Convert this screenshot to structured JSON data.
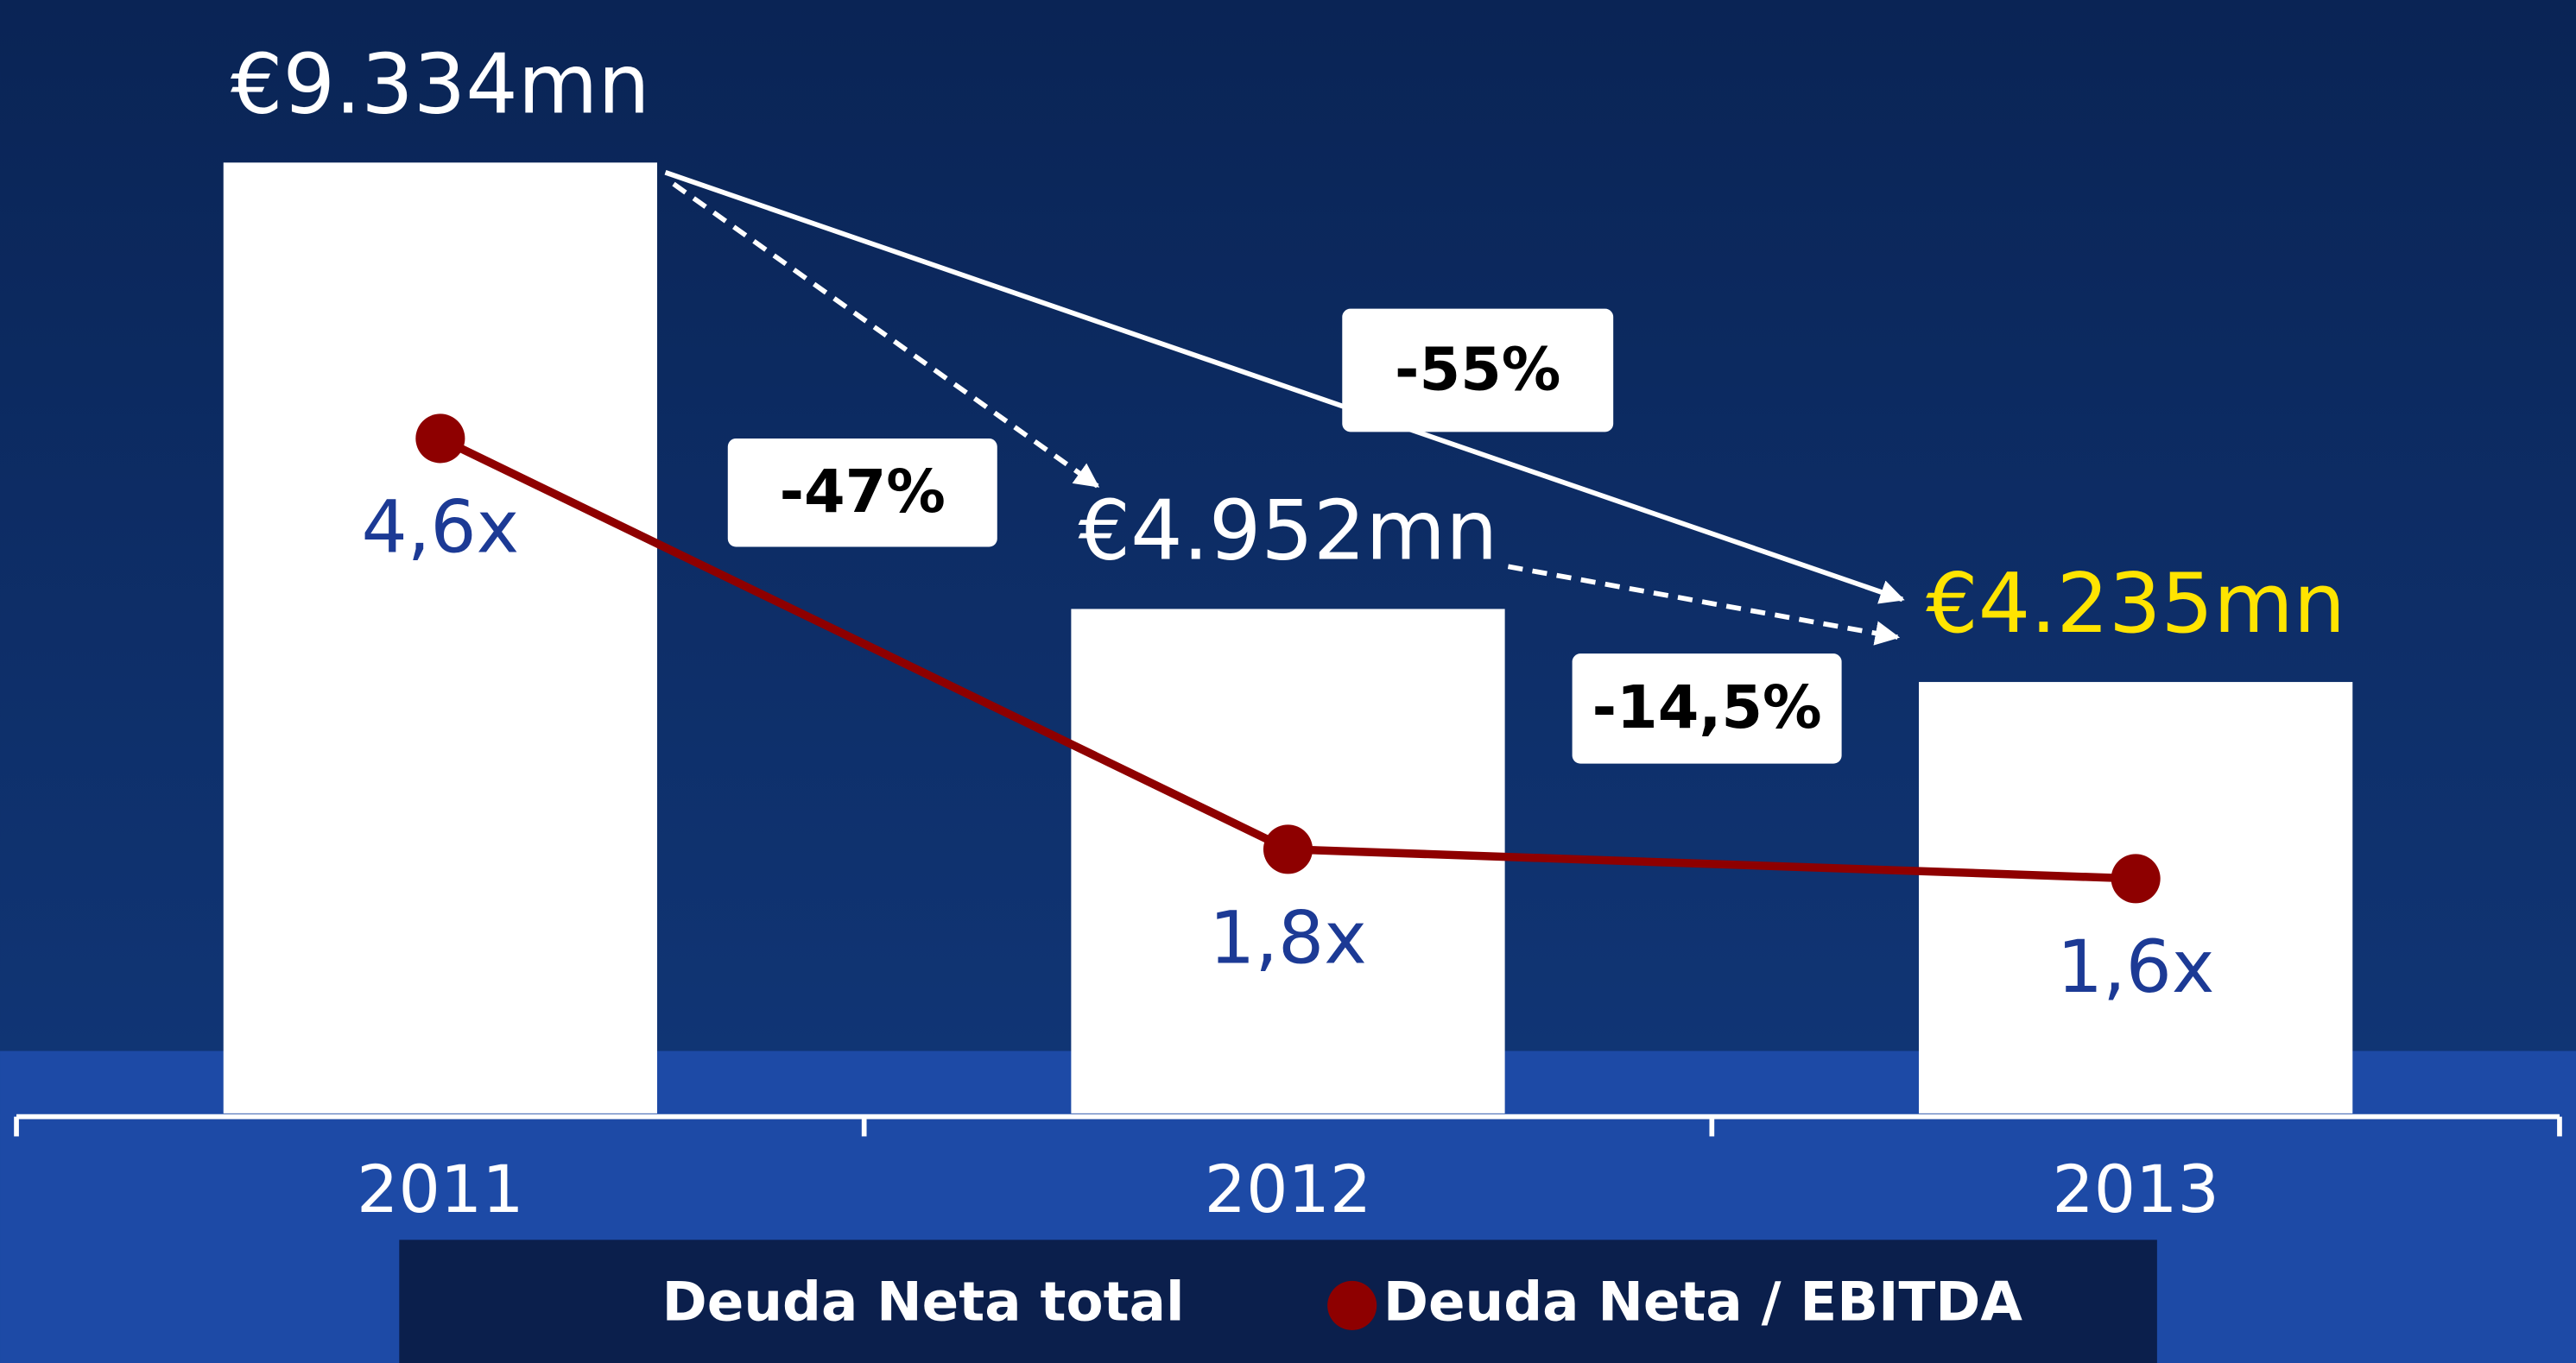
{
  "chart_data": {
    "type": "bar",
    "categories": [
      "2011",
      "2012",
      "2013"
    ],
    "series": [
      {
        "name": "Deuda Neta total",
        "type": "bar",
        "color": "#ffffff",
        "values": [
          9334,
          4952,
          4235
        ],
        "value_labels": [
          "€9.334mn",
          "€4.952mn",
          "€4.235mn"
        ],
        "value_label_colors": [
          "#ffffff",
          "#ffffff",
          "#ffe400"
        ]
      },
      {
        "name": "Deuda Neta / EBITDA",
        "type": "line",
        "color": "#8e0000",
        "values": [
          4.6,
          1.8,
          1.6
        ],
        "value_labels": [
          "4,6x",
          "1,8x",
          "1,6x"
        ],
        "value_label_color": "#1c3a95"
      }
    ],
    "annotations": [
      "-47%",
      "-55%",
      "-14,5%"
    ]
  }
}
